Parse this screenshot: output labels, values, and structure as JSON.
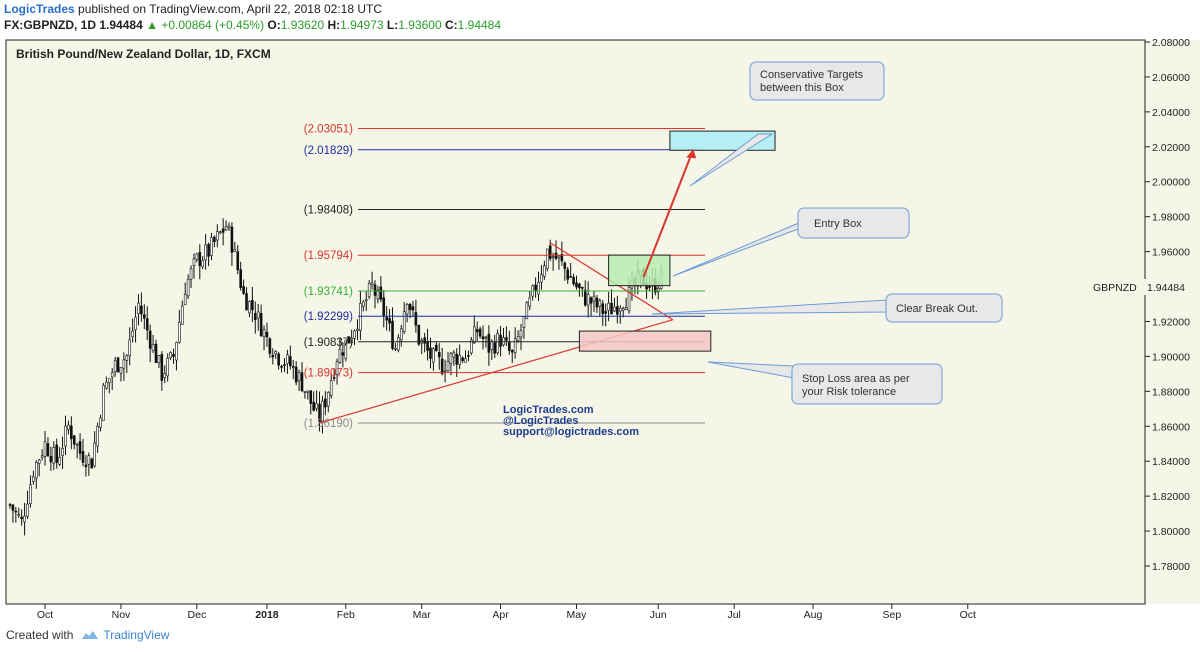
{
  "header": {
    "brand": "LogicTrades",
    "published": "published on TradingView.com, April 22, 2018 02:18 UTC",
    "symbol": "FX:GBPNZD, 1D",
    "last": "1.94484",
    "change": "+0.00864 (+0.45%)",
    "o_label": "O:",
    "o_val": "1.93620",
    "h_label": "H:",
    "h_val": "1.94973",
    "l_label": "L:",
    "l_val": "1.93600",
    "c_label": "C:",
    "c_val": "1.94484"
  },
  "footer": {
    "created_with": "Created with",
    "tradingview": "TradingView"
  },
  "colors": {
    "bg": "#f6f6e8",
    "up": "#000000",
    "down": "#000000",
    "red": "#d9352b",
    "blue": "#1d2fa0",
    "green": "#35b335",
    "grey": "#8c8c8c"
  },
  "chart_data": {
    "type": "candlestick",
    "title": "British Pound/New Zealand Dollar, 1D, FXCM",
    "symbol_tag": "GBPNZD",
    "last_price": 1.94484,
    "last_price_label": "1.94484",
    "x_ticks": [
      "Oct",
      "Nov",
      "Dec",
      "2018",
      "Feb",
      "Mar",
      "Apr",
      "May",
      "Jun",
      "Jul",
      "Aug",
      "Sep",
      "Oct"
    ],
    "y_range": [
      1.76,
      2.08
    ],
    "y_ticks": [
      "1.78000",
      "1.80000",
      "1.82000",
      "1.84000",
      "1.86000",
      "1.88000",
      "1.90000",
      "1.92000",
      "1.94000",
      "1.96000",
      "1.98000",
      "2.00000",
      "2.02000",
      "2.04000",
      "2.06000",
      "2.08000"
    ],
    "close_path": [
      [
        0,
        1.815
      ],
      [
        4,
        1.805
      ],
      [
        8,
        1.835
      ],
      [
        12,
        1.85
      ],
      [
        16,
        1.84
      ],
      [
        20,
        1.86
      ],
      [
        24,
        1.845
      ],
      [
        28,
        1.84
      ],
      [
        32,
        1.88
      ],
      [
        36,
        1.895
      ],
      [
        40,
        1.9
      ],
      [
        44,
        1.93
      ],
      [
        48,
        1.91
      ],
      [
        52,
        1.89
      ],
      [
        56,
        1.9
      ],
      [
        60,
        1.94
      ],
      [
        64,
        1.955
      ],
      [
        68,
        1.96
      ],
      [
        72,
        1.97
      ],
      [
        74,
        1.975
      ],
      [
        76,
        1.965
      ],
      [
        78,
        1.95
      ],
      [
        80,
        1.935
      ],
      [
        84,
        1.925
      ],
      [
        88,
        1.91
      ],
      [
        92,
        1.9
      ],
      [
        96,
        1.895
      ],
      [
        100,
        1.885
      ],
      [
        104,
        1.87
      ],
      [
        106,
        1.865
      ],
      [
        108,
        1.875
      ],
      [
        112,
        1.9
      ],
      [
        116,
        1.91
      ],
      [
        120,
        1.925
      ],
      [
        124,
        1.94
      ],
      [
        128,
        1.925
      ],
      [
        132,
        1.905
      ],
      [
        136,
        1.935
      ],
      [
        140,
        1.91
      ],
      [
        144,
        1.9
      ],
      [
        148,
        1.895
      ],
      [
        152,
        1.9
      ],
      [
        156,
        1.9
      ],
      [
        160,
        1.915
      ],
      [
        164,
        1.905
      ],
      [
        168,
        1.91
      ],
      [
        172,
        1.9
      ],
      [
        176,
        1.92
      ],
      [
        180,
        1.94
      ],
      [
        184,
        1.96
      ],
      [
        188,
        1.955
      ],
      [
        192,
        1.945
      ],
      [
        196,
        1.935
      ],
      [
        200,
        1.93
      ],
      [
        204,
        1.925
      ],
      [
        208,
        1.93
      ],
      [
        212,
        1.935
      ],
      [
        216,
        1.945
      ],
      [
        220,
        1.94
      ],
      [
        223,
        1.9448
      ]
    ],
    "fib_levels": [
      {
        "label": "(2.03051)",
        "value": 2.03051,
        "color": "red"
      },
      {
        "label": "(2.01829)",
        "value": 2.01829,
        "color": "blue"
      },
      {
        "label": "(1.98408)",
        "value": 1.98408,
        "color": "black"
      },
      {
        "label": "(1.95794)",
        "value": 1.95794,
        "color": "red"
      },
      {
        "label": "(1.93741)",
        "value": 1.93741,
        "color": "green"
      },
      {
        "label": "(1.92299)",
        "value": 1.92299,
        "color": "blue"
      },
      {
        "label": "(1.90837)",
        "value": 1.90837,
        "color": "black"
      },
      {
        "label": "(1.89073)",
        "value": 1.89073,
        "color": "red"
      },
      {
        "label": "(1.86190)",
        "value": 1.8619,
        "color": "grey"
      }
    ],
    "annotations": {
      "targets": "Conservative Targets\nbetween this Box",
      "entry": "Entry Box",
      "breakout": "Clear Break Out.",
      "stoploss": "Stop Loss area as per\nyour Risk tolerance",
      "watermark": [
        "LogicTrades.com",
        "@LogicTrades",
        "support@logictrades.com"
      ]
    }
  }
}
